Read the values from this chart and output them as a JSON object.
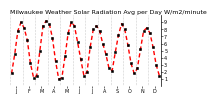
{
  "title": "Milwaukee Weather Solar Radiation Avg per Day W/m2/minute",
  "line_color": "#ff0000",
  "background_color": "#ffffff",
  "values": [
    1.8,
    4.5,
    7.8,
    9.0,
    8.2,
    6.5,
    3.2,
    1.2,
    1.5,
    5.0,
    8.5,
    9.2,
    8.8,
    6.8,
    3.5,
    1.0,
    1.2,
    4.2,
    7.5,
    9.0,
    8.5,
    6.2,
    3.8,
    1.5,
    2.0,
    5.5,
    8.0,
    8.5,
    7.8,
    6.0,
    4.5,
    2.5,
    2.2,
    4.8,
    7.2,
    8.8,
    8.0,
    5.8,
    3.2,
    1.8,
    2.5,
    5.2,
    7.8,
    8.2,
    7.5,
    5.5,
    3.0,
    1.5
  ],
  "n_months": 12,
  "xlabels": [
    "J",
    "F",
    "M",
    "A",
    "M",
    "J",
    "J",
    "A",
    "S",
    "O",
    "N",
    "D"
  ],
  "ylim": [
    0,
    10
  ],
  "yticks": [
    1,
    2,
    3,
    4,
    5,
    6,
    7,
    8,
    9
  ],
  "grid_color": "#999999",
  "title_fontsize": 4.5,
  "tick_fontsize": 3.5
}
